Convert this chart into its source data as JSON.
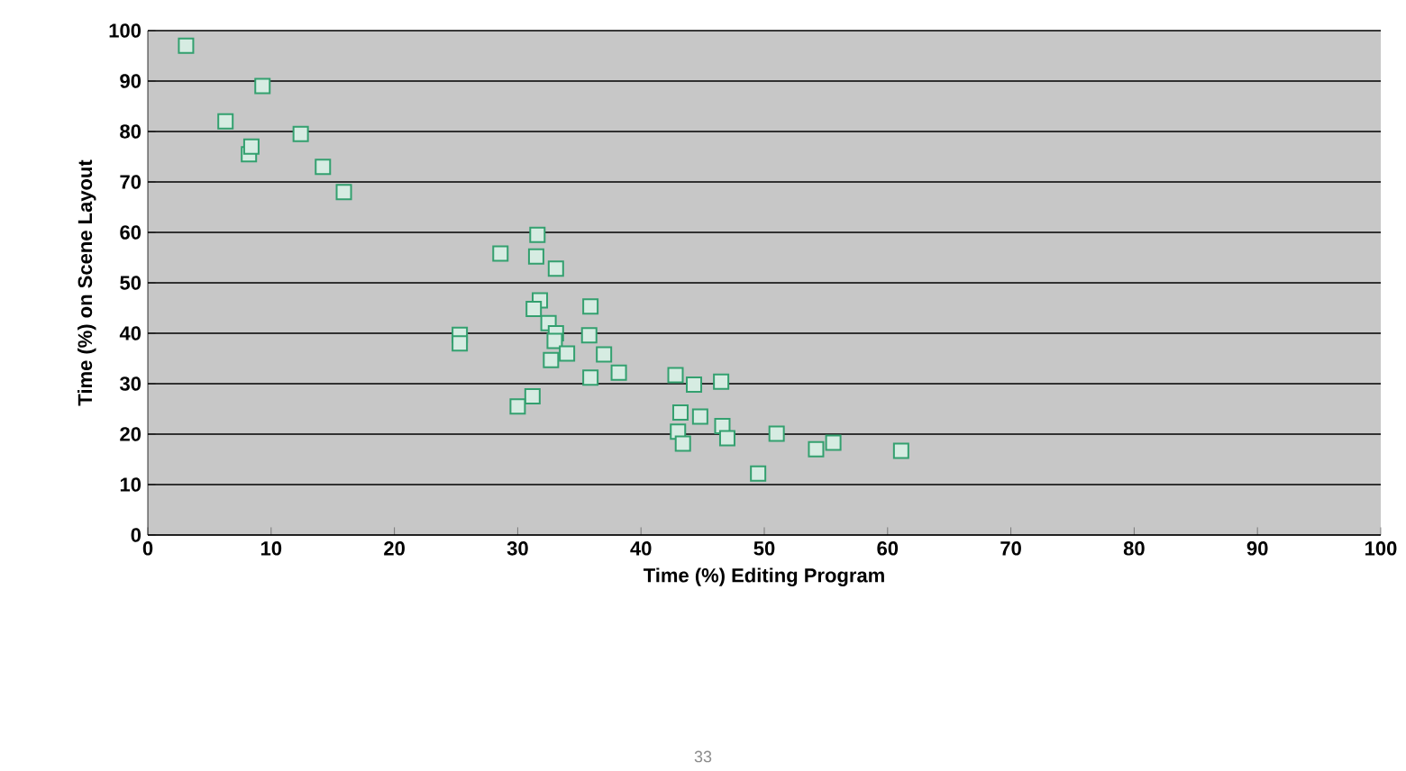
{
  "chart_data": {
    "type": "scatter",
    "xlabel": "Time (%) Editing Program",
    "ylabel": "Time (%)  on Scene Layout",
    "xlim": [
      0,
      100
    ],
    "ylim": [
      0,
      100
    ],
    "xticks": [
      0,
      10,
      20,
      30,
      40,
      50,
      60,
      70,
      80,
      90,
      100
    ],
    "yticks": [
      0,
      10,
      20,
      30,
      40,
      50,
      60,
      70,
      80,
      90,
      100
    ],
    "grid": "y",
    "marker": "square",
    "annotations": [
      "33"
    ],
    "series": [
      {
        "color": "#33a06f",
        "x": [
          3.1,
          6.3,
          9.3,
          8.2,
          8.4,
          12.4,
          14.2,
          15.9,
          28.6,
          31.6,
          31.5,
          33.1,
          25.3,
          25.3,
          31.8,
          31.3,
          32.5,
          33.1,
          33.0,
          32.7,
          34.0,
          31.2,
          30.0,
          35.9,
          35.8,
          37.0,
          38.2,
          35.9,
          42.8,
          44.3,
          46.5,
          43.2,
          44.8,
          43.0,
          43.4,
          46.6,
          47.0,
          51.0,
          49.5,
          54.2,
          55.6,
          61.1
        ],
        "values": [
          97,
          82,
          89,
          75.5,
          77,
          79.5,
          73,
          68,
          55.8,
          59.5,
          55.2,
          52.8,
          39.7,
          38,
          46.5,
          44.8,
          42,
          40,
          38.5,
          34.7,
          36,
          27.5,
          25.5,
          45.3,
          39.6,
          35.8,
          32.2,
          31.2,
          31.7,
          29.8,
          30.4,
          24.3,
          23.5,
          20.5,
          18.1,
          21.6,
          19.2,
          20.1,
          12.2,
          17,
          18.3,
          16.7
        ]
      }
    ]
  }
}
